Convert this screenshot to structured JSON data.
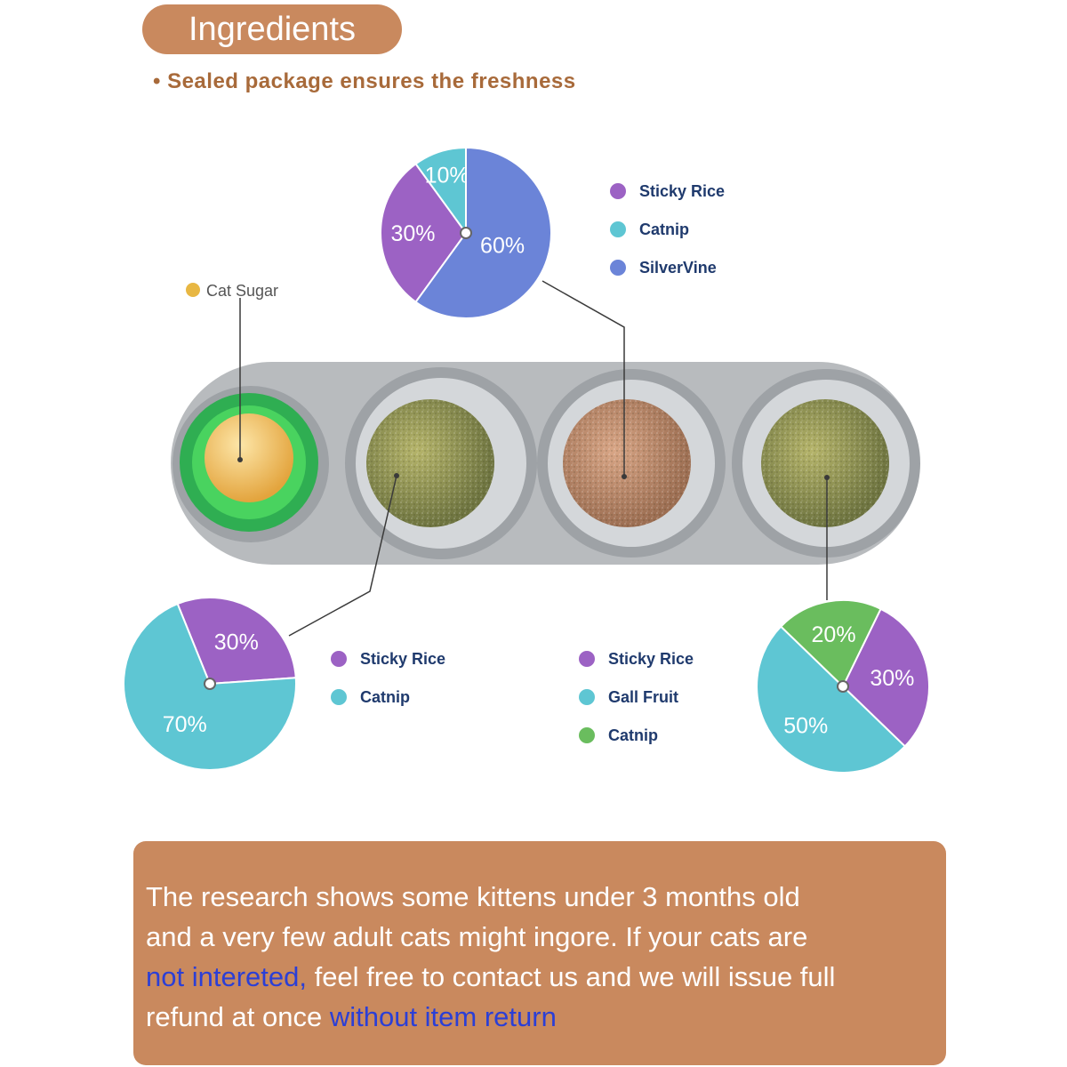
{
  "header": {
    "badge": "Ingredients",
    "subtitle": "• Sealed package ensures the freshness"
  },
  "callout": {
    "label": "Cat Sugar",
    "color": "#e8b743"
  },
  "colors": {
    "sticky_rice": "#9c62c4",
    "catnip_teal": "#5ec6d3",
    "silvervine": "#6b84d8",
    "gall_fruit": "#5ec6d3",
    "catnip_green": "#6abd5e",
    "brand_panel": "#c9895e",
    "link_blue": "#2b3fd6"
  },
  "chart_data": [
    {
      "type": "pie",
      "title": "",
      "slices": [
        {
          "label": "Sticky Rice",
          "value": 30,
          "text": "30%",
          "color": "#9c62c4"
        },
        {
          "label": "Catnip",
          "value": 10,
          "text": "10%",
          "color": "#5ec6d3"
        },
        {
          "label": "SilverVine",
          "value": 60,
          "text": "60%",
          "color": "#6b84d8"
        }
      ],
      "legend": [
        "Sticky Rice",
        "Catnip",
        "SilverVine"
      ]
    },
    {
      "type": "pie",
      "title": "",
      "slices": [
        {
          "label": "Sticky Rice",
          "value": 30,
          "text": "30%",
          "color": "#9c62c4"
        },
        {
          "label": "Catnip",
          "value": 70,
          "text": "70%",
          "color": "#5ec6d3"
        }
      ],
      "legend": [
        "Sticky Rice",
        "Catnip"
      ]
    },
    {
      "type": "pie",
      "title": "",
      "slices": [
        {
          "label": "Sticky Rice",
          "value": 30,
          "text": "30%",
          "color": "#9c62c4"
        },
        {
          "label": "Gall Fruit",
          "value": 50,
          "text": "50%",
          "color": "#5ec6d3"
        },
        {
          "label": "Catnip",
          "value": 20,
          "text": "20%",
          "color": "#6abd5e"
        }
      ],
      "legend": [
        "Sticky Rice",
        "Gall Fruit",
        "Catnip"
      ]
    }
  ],
  "note": {
    "line1": "The research shows some kittens under 3 months old",
    "line2": "and a very few adult cats might ingore. If your cats are",
    "highlight1": "not intereted,",
    "line3_rest": " feel free to contact us and we will issue full",
    "line4_start": "refund at once ",
    "highlight2": "without item return"
  }
}
